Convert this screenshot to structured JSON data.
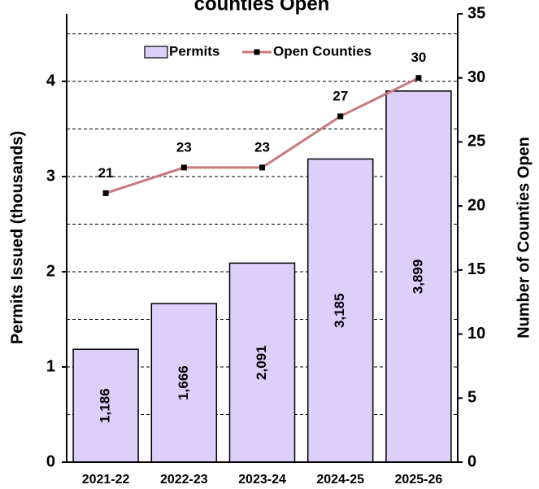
{
  "chart_data": {
    "type": "bar_line",
    "title": "counties Open",
    "y_label": "Permits Issued (thousands)",
    "y2_label": "Number of Counties Open",
    "categories": [
      "2021-22",
      "2022-23",
      "2023-24",
      "2024-25",
      "2025-26"
    ],
    "series": [
      {
        "name": "Permits",
        "type": "bar",
        "color": "#dccffa",
        "values": [
          1.186,
          1.666,
          2.091,
          3.185,
          3.899
        ],
        "value_labels": [
          "1,186",
          "1,666",
          "2,091",
          "3,185",
          "3,899"
        ]
      },
      {
        "name": "Open Counties",
        "type": "line",
        "color": "#c87a7a",
        "axis": "y2",
        "values": [
          21,
          23,
          23,
          27,
          30
        ]
      }
    ],
    "ylim": [
      0,
      4.71
    ],
    "yticks": [
      0,
      1,
      2,
      3,
      4
    ],
    "grid_yticks": [
      0.5,
      1,
      1.5,
      2,
      2.5,
      3,
      3.5,
      4,
      4.5
    ],
    "y2lim": [
      0,
      35
    ],
    "y2ticks": [
      0,
      5,
      10,
      15,
      20,
      25,
      30,
      35
    ],
    "grid": true,
    "legend": "top"
  }
}
